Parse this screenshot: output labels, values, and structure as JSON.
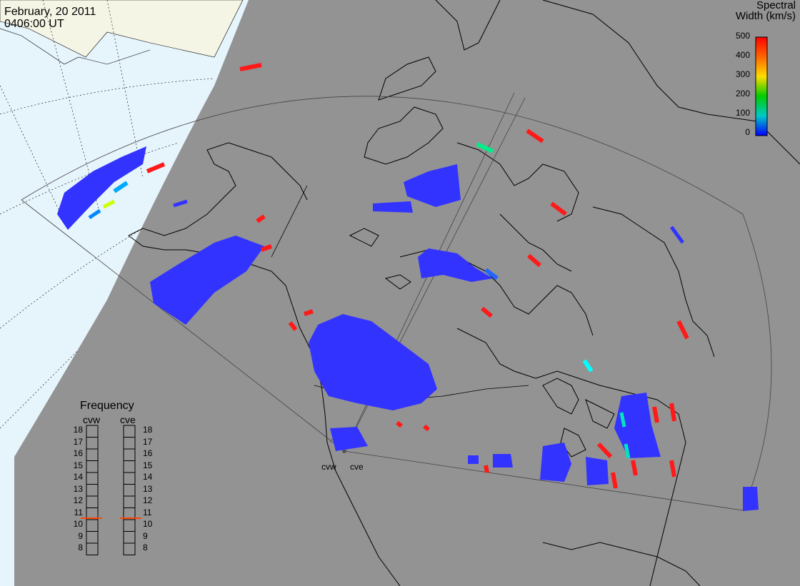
{
  "header": {
    "date": "February, 20 2011",
    "time": "0406:00 UT"
  },
  "legend": {
    "title_line1": "Spectral",
    "title_line2": "Width (km/s)",
    "ticks": [
      "500",
      "400",
      "300",
      "200",
      "100",
      "0"
    ],
    "colors": [
      "#ff0000",
      "#ff8c00",
      "#ffd700",
      "#00cc00",
      "#00c8c8",
      "#0000ff"
    ]
  },
  "frequency_panel": {
    "title": "Frequency",
    "radars": [
      "cvw",
      "cve"
    ],
    "scale": [
      "18",
      "17",
      "16",
      "15",
      "14",
      "13",
      "12",
      "11",
      "10",
      "9",
      "8"
    ],
    "cvw_mark": 11,
    "cve_mark": 11
  },
  "map_labels": {
    "radar_left": "cvw",
    "radar_right": "cve"
  },
  "colors": {
    "background": "#939393",
    "ocean_light": "#e6f4fb",
    "land_light": "#f5f5e6",
    "data_blue": "#3333ff",
    "data_red": "#ff1a1a"
  }
}
